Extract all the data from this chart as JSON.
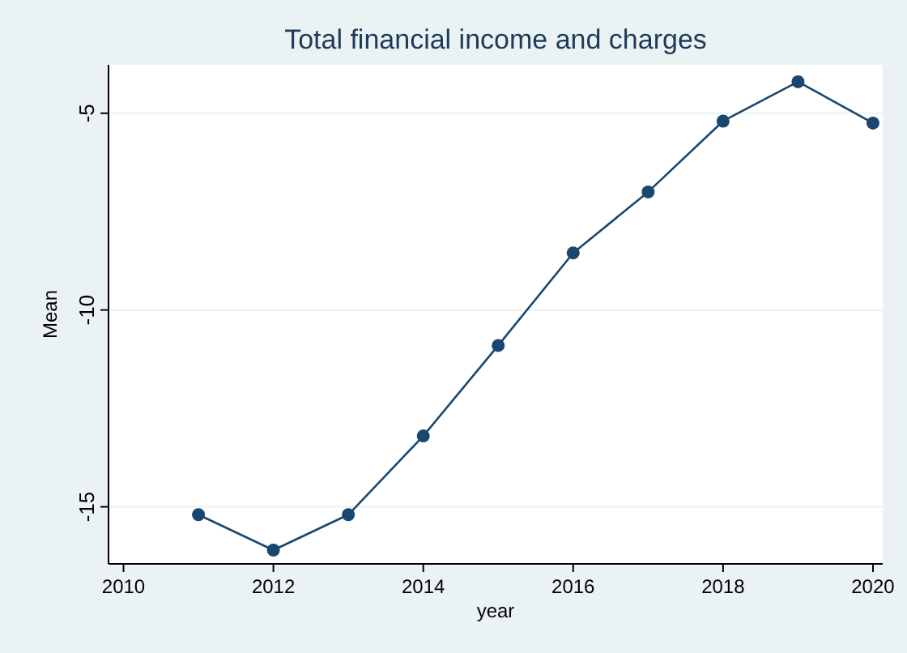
{
  "chart_data": {
    "type": "line",
    "title": "Total financial income and charges",
    "xlabel": "year",
    "ylabel": "Mean",
    "x": [
      2011,
      2012,
      2013,
      2014,
      2015,
      2016,
      2017,
      2018,
      2019,
      2020
    ],
    "series": [
      {
        "color": "#1a476f",
        "values": [
          -15.2,
          -16.1,
          -15.2,
          -13.2,
          -10.9,
          -8.55,
          -7.0,
          -5.2,
          -4.2,
          -5.25
        ]
      }
    ],
    "xlim": [
      2009.8,
      2020.13
    ],
    "ylim": [
      -16.45,
      -3.77
    ],
    "xticks": [
      2010,
      2012,
      2014,
      2016,
      2018,
      2020
    ],
    "yticks": [
      -15,
      -10,
      -5
    ],
    "grid": "y",
    "marker": "circle",
    "line_style": "solid"
  }
}
